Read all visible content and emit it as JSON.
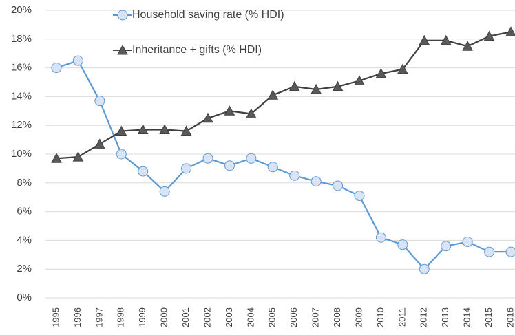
{
  "chart_data": {
    "type": "line",
    "categories": [
      "1995",
      "1996",
      "1997",
      "1998",
      "1999",
      "2000",
      "2001",
      "2002",
      "2003",
      "2004",
      "2005",
      "2006",
      "2007",
      "2008",
      "2009",
      "2010",
      "2011",
      "2012",
      "2013",
      "2014",
      "2015",
      "2016"
    ],
    "series": [
      {
        "name": "Household saving rate (% HDI)",
        "color": "#5b9bd5",
        "marker": "circle",
        "values": [
          16.0,
          16.5,
          13.7,
          10.0,
          8.8,
          7.4,
          9.0,
          9.7,
          9.2,
          9.7,
          9.1,
          8.5,
          8.1,
          7.8,
          7.1,
          4.2,
          3.7,
          2.0,
          3.6,
          3.9,
          3.2,
          3.2
        ]
      },
      {
        "name": "Inheritance + gifts (% HDI)",
        "color": "#404040",
        "marker": "triangle",
        "values": [
          9.7,
          9.8,
          10.7,
          11.6,
          11.7,
          11.7,
          11.6,
          12.5,
          13.0,
          12.8,
          14.1,
          14.7,
          14.5,
          14.7,
          15.1,
          15.6,
          15.9,
          17.9,
          17.9,
          17.5,
          18.2,
          18.5
        ]
      }
    ],
    "ylim": [
      0,
      20
    ],
    "yticks": [
      {
        "value": 0,
        "label": "0%"
      },
      {
        "value": 2,
        "label": "2%"
      },
      {
        "value": 4,
        "label": "4%"
      },
      {
        "value": 6,
        "label": "6%"
      },
      {
        "value": 8,
        "label": "8%"
      },
      {
        "value": 10,
        "label": "10%"
      },
      {
        "value": 12,
        "label": "12%"
      },
      {
        "value": 14,
        "label": "14%"
      },
      {
        "value": 16,
        "label": "16%"
      },
      {
        "value": 18,
        "label": "18%"
      },
      {
        "value": 20,
        "label": "20%"
      }
    ],
    "grid": true,
    "legend": "top"
  }
}
